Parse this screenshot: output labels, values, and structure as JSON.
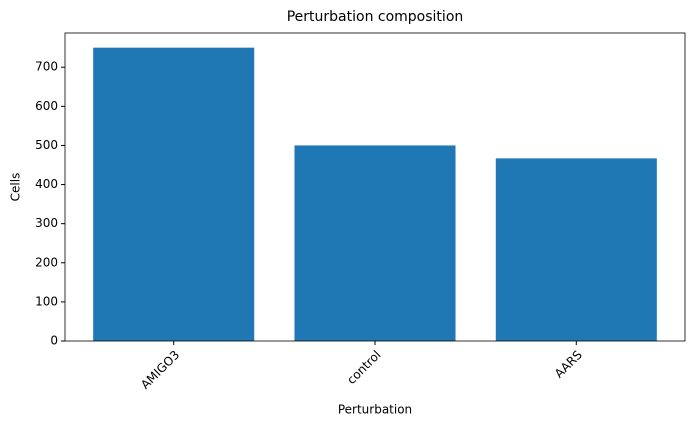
{
  "chart_data": {
    "type": "bar",
    "title": "Perturbation composition",
    "x_label": "Perturbation",
    "y_label": "Cells",
    "categories": [
      "AMIGO3",
      "control",
      "AARS"
    ],
    "values": [
      750,
      500,
      467
    ],
    "color": "#1f77b4",
    "ylim": [
      0,
      787.5
    ],
    "yticks": [
      0,
      100,
      200,
      300,
      400,
      500,
      600,
      700
    ],
    "grid": false
  }
}
